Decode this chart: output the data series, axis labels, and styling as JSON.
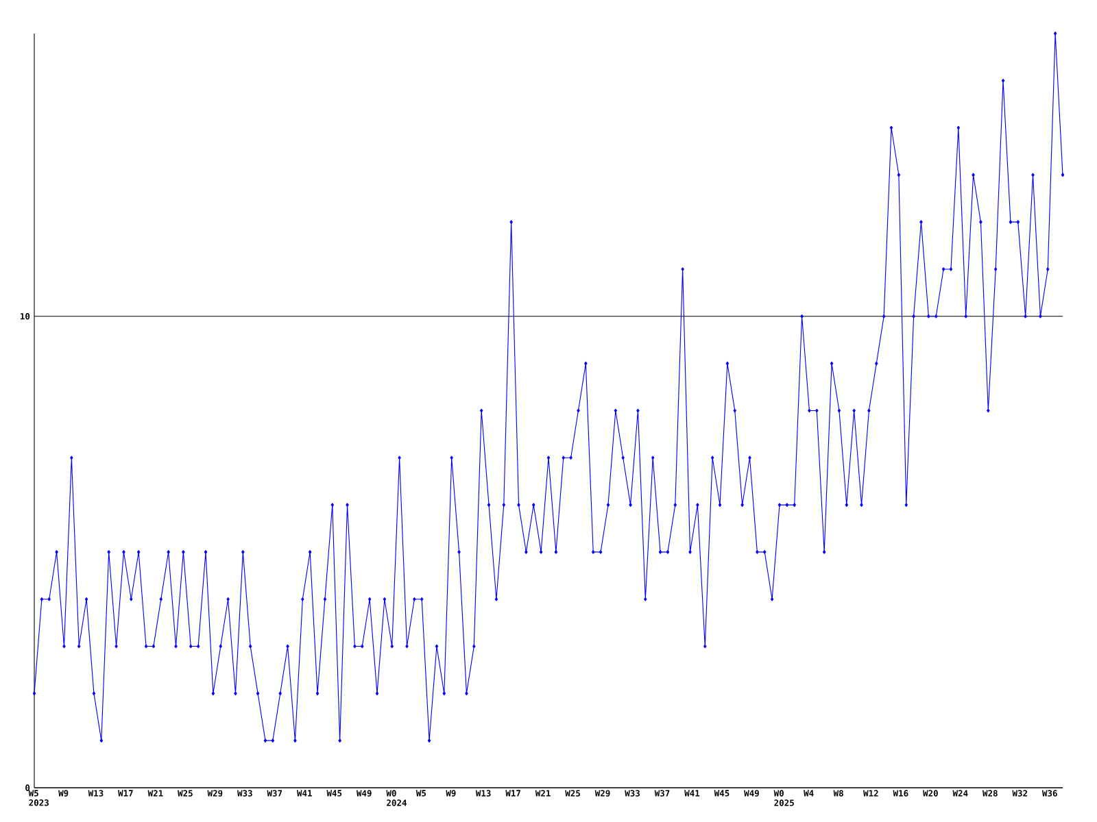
{
  "chart_data": {
    "type": "line",
    "categories": [
      "W5 2023",
      null,
      null,
      null,
      "W9",
      null,
      null,
      null,
      "W13",
      null,
      null,
      null,
      "W17",
      null,
      null,
      null,
      "W21",
      null,
      null,
      null,
      "W25",
      null,
      null,
      null,
      "W29",
      null,
      null,
      null,
      "W33",
      null,
      null,
      null,
      "W37",
      null,
      null,
      null,
      "W41",
      null,
      null,
      null,
      "W45",
      null,
      null,
      null,
      "W49",
      null,
      null,
      null,
      "W0 2024",
      null,
      null,
      null,
      "W5",
      null,
      null,
      null,
      "W9",
      null,
      null,
      null,
      "W13",
      null,
      null,
      null,
      "W17",
      null,
      null,
      null,
      "W21",
      null,
      null,
      null,
      "W25",
      null,
      null,
      null,
      "W29",
      null,
      null,
      null,
      "W33",
      null,
      null,
      null,
      "W37",
      null,
      null,
      null,
      "W41",
      null,
      null,
      null,
      "W45",
      null,
      null,
      null,
      "W49",
      null,
      null,
      null,
      "W0 2025",
      null,
      null,
      null,
      "W4",
      null,
      null,
      null,
      "W8",
      null,
      null,
      null,
      "W12",
      null,
      null,
      null,
      "W16",
      null,
      null,
      null,
      "W20",
      null,
      null,
      null,
      "W24",
      null,
      null,
      null,
      "W28",
      null,
      null,
      null,
      "W32",
      null,
      null,
      null,
      "W36",
      null,
      null
    ],
    "values": [
      2,
      4,
      4,
      5,
      3,
      7,
      3,
      4,
      2,
      1,
      5,
      3,
      5,
      4,
      5,
      3,
      3,
      4,
      5,
      3,
      5,
      3,
      3,
      5,
      2,
      3,
      4,
      2,
      5,
      3,
      2,
      1,
      1,
      2,
      3,
      1,
      4,
      5,
      2,
      4,
      6,
      1,
      6,
      3,
      3,
      4,
      2,
      4,
      3,
      7,
      3,
      4,
      4,
      1,
      3,
      2,
      7,
      5,
      2,
      3,
      8,
      6,
      4,
      6,
      12,
      6,
      5,
      6,
      5,
      7,
      5,
      7,
      7,
      8,
      9,
      5,
      5,
      6,
      8,
      7,
      6,
      8,
      4,
      7,
      5,
      5,
      6,
      11,
      5,
      6,
      3,
      7,
      6,
      9,
      8,
      6,
      7,
      5,
      5,
      4,
      6,
      6,
      6,
      10,
      8,
      8,
      5,
      9,
      8,
      6,
      8,
      6,
      8,
      9,
      10,
      14,
      13,
      6,
      10,
      12,
      10,
      10,
      11,
      11,
      14,
      10,
      13,
      12,
      8,
      11,
      15,
      12,
      12,
      10,
      13,
      10,
      11,
      16,
      13
    ],
    "color": "#0000ff",
    "ylim": [
      0,
      16
    ],
    "yticks": [
      0,
      10
    ],
    "grid": "y",
    "marker": "diamond",
    "line_style": "solid"
  }
}
